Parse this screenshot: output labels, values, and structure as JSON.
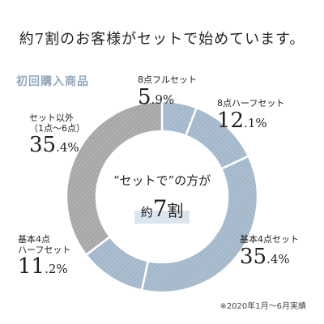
{
  "headline": "約7割のお客様がセットで始めています。",
  "section_label": "初回購入商品",
  "center": {
    "line1": "“セットで”の方が",
    "prefix": "約",
    "number": "7",
    "suffix": "割"
  },
  "footnote": "※2020年1月〜6月実績",
  "colors": {
    "blue": "#a3b8ca",
    "gray": "#a7a7a7",
    "accent_text": "#8fa8be",
    "highlight": "#dbe5ee"
  },
  "chart_data": {
    "type": "pie",
    "donut": true,
    "slices": [
      {
        "name": "8点フルセット",
        "name2": "",
        "big": "5",
        "small": ".9%",
        "value": 5.9,
        "color": "#a3b8ca"
      },
      {
        "name": "8点ハーフセット",
        "name2": "",
        "big": "12",
        "small": ".1%",
        "value": 12.1,
        "color": "#a3b8ca"
      },
      {
        "name": "基本4点セット",
        "name2": "",
        "big": "35",
        "small": ".4%",
        "value": 35.4,
        "color": "#a3b8ca"
      },
      {
        "name": "基本4点",
        "name2": "ハーフセット",
        "big": "11",
        "small": ".2%",
        "value": 11.2,
        "color": "#a3b8ca"
      },
      {
        "name": "セット以外",
        "name2": "（1点〜6点）",
        "big": "35",
        "small": ".4%",
        "value": 35.4,
        "color": "#a7a7a7"
      }
    ]
  }
}
